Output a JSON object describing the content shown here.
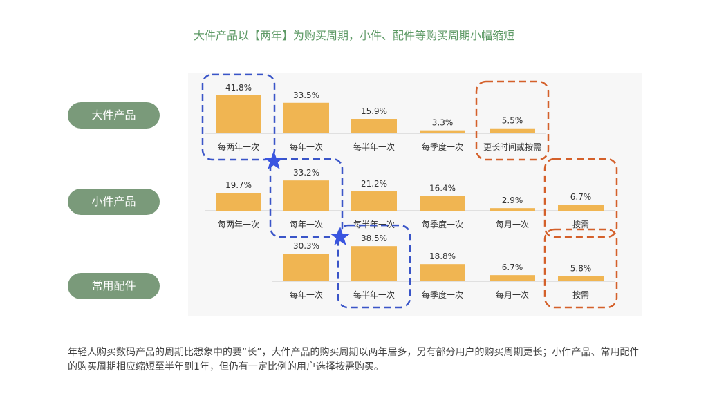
{
  "title": "大件产品以【两年】为购买周期，小件、配件等购买周期小幅缩短",
  "footer": "年轻人购买数码产品的周期比想象中的要“长”，大件产品的购买周期以两年居多，另有部分用户的购买周期更长；小件产品、常用配件的购买周期相应缩短至半年到1年，但仍有一定比例的用户选择按需购买。",
  "colors": {
    "bar": "#f0b552",
    "baseline": "#c8c8c8",
    "highlight_blue": "#3a55c8",
    "highlight_orange": "#d4602a",
    "arrow": "#3a55e0",
    "pill": "#7a9a7a",
    "title": "#5e9a66"
  },
  "chart_data": [
    {
      "type": "bar",
      "row_label": "大件产品",
      "categories": [
        "每两年一次",
        "每年一次",
        "每半年一次",
        "每季度一次",
        "更长时间或按需"
      ],
      "values": [
        41.8,
        33.5,
        15.9,
        3.3,
        5.5
      ],
      "value_labels": [
        "41.8%",
        "33.5%",
        "15.9%",
        "3.3%",
        "5.5%"
      ],
      "unit": "%",
      "highlighted": {
        "blue": [
          "每两年一次"
        ],
        "orange": [
          "更长时间或按需"
        ]
      }
    },
    {
      "type": "bar",
      "row_label": "小件产品",
      "categories": [
        "每两年一次",
        "每年一次",
        "每半年一次",
        "每季度一次",
        "每月一次",
        "按需"
      ],
      "values": [
        19.7,
        33.2,
        21.2,
        16.4,
        2.9,
        6.7
      ],
      "value_labels": [
        "19.7%",
        "33.2%",
        "21.2%",
        "16.4%",
        "2.9%",
        "6.7%"
      ],
      "unit": "%",
      "highlighted": {
        "blue": [
          "每年一次"
        ],
        "orange": [
          "按需"
        ]
      }
    },
    {
      "type": "bar",
      "row_label": "常用配件",
      "categories": [
        "每年一次",
        "每半年一次",
        "每季度一次",
        "每月一次",
        "按需"
      ],
      "values": [
        30.3,
        38.5,
        18.8,
        6.7,
        5.8
      ],
      "value_labels": [
        "30.3%",
        "38.5%",
        "18.8%",
        "6.7%",
        "5.8%"
      ],
      "unit": "%",
      "highlighted": {
        "blue": [
          "每半年一次"
        ],
        "orange": [
          "按需"
        ]
      }
    }
  ]
}
